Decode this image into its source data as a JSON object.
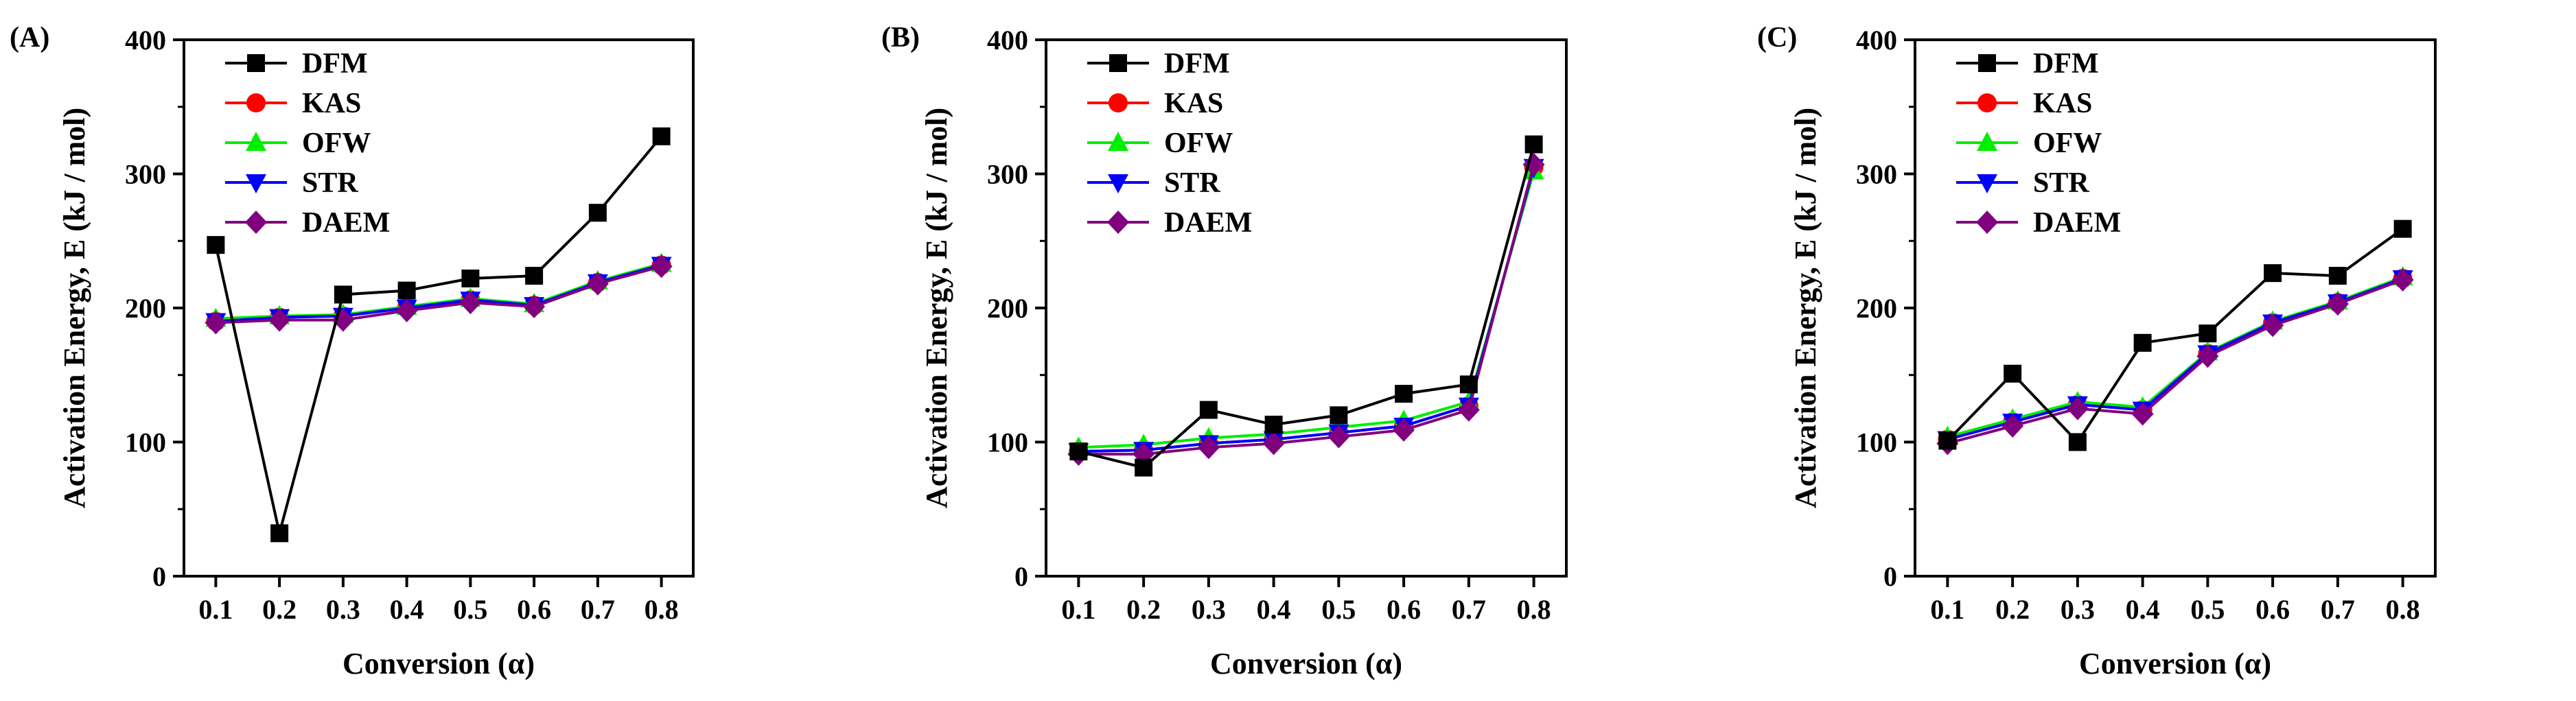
{
  "chart_data": [
    {
      "type": "line",
      "panel_label": "(A)",
      "xlabel": "Conversion (α)",
      "ylabel": "Activation Energy, E (kJ / mol)",
      "xlim": [
        0.05,
        0.85
      ],
      "ylim": [
        0,
        400
      ],
      "x": [
        0.1,
        0.2,
        0.3,
        0.4,
        0.5,
        0.6,
        0.7,
        0.8
      ],
      "x_tick_labels": [
        "0.1",
        "0.2",
        "0.3",
        "0.4",
        "0.5",
        "0.6",
        "0.7",
        "0.8"
      ],
      "y_ticks": [
        0,
        100,
        200,
        300,
        400
      ],
      "y_tick_labels": [
        "0",
        "100",
        "200",
        "300",
        "400"
      ],
      "legend_position": "top-left",
      "series": [
        {
          "name": "DFM",
          "color": "#000000",
          "marker": "square",
          "values": [
            247,
            32,
            210,
            213,
            222,
            224,
            271,
            328
          ]
        },
        {
          "name": "KAS",
          "color": "#ff0000",
          "marker": "circle",
          "values": [
            190,
            193,
            194,
            200,
            206,
            202,
            219,
            232
          ]
        },
        {
          "name": "OFW",
          "color": "#00ee00",
          "marker": "triangle-up",
          "values": [
            192,
            194,
            195,
            201,
            207,
            203,
            220,
            233
          ]
        },
        {
          "name": "STR",
          "color": "#0000ff",
          "marker": "triangle-down",
          "values": [
            190,
            193,
            194,
            200,
            206,
            202,
            219,
            232
          ]
        },
        {
          "name": "DAEM",
          "color": "#800080",
          "marker": "diamond",
          "values": [
            189,
            191,
            191,
            198,
            204,
            201,
            218,
            231
          ]
        }
      ]
    },
    {
      "type": "line",
      "panel_label": "(B)",
      "xlabel": "Conversion (α)",
      "ylabel": "Activation Energy, E (kJ / mol)",
      "xlim": [
        0.05,
        0.85
      ],
      "ylim": [
        0,
        400
      ],
      "x": [
        0.1,
        0.2,
        0.3,
        0.4,
        0.5,
        0.6,
        0.7,
        0.8
      ],
      "x_tick_labels": [
        "0.1",
        "0.2",
        "0.3",
        "0.4",
        "0.5",
        "0.6",
        "0.7",
        "0.8"
      ],
      "y_ticks": [
        0,
        100,
        200,
        300,
        400
      ],
      "y_tick_labels": [
        "0",
        "100",
        "200",
        "300",
        "400"
      ],
      "legend_position": "top-left",
      "series": [
        {
          "name": "DFM",
          "color": "#000000",
          "marker": "square",
          "values": [
            93,
            81,
            124,
            113,
            120,
            136,
            143,
            322
          ]
        },
        {
          "name": "KAS",
          "color": "#ff0000",
          "marker": "circle",
          "values": [
            93,
            94,
            99,
            102,
            107,
            112,
            127,
            305
          ]
        },
        {
          "name": "OFW",
          "color": "#00ee00",
          "marker": "triangle-up",
          "values": [
            96,
            98,
            103,
            106,
            111,
            116,
            130,
            302
          ]
        },
        {
          "name": "STR",
          "color": "#0000ff",
          "marker": "triangle-down",
          "values": [
            93,
            94,
            99,
            102,
            107,
            112,
            127,
            305
          ]
        },
        {
          "name": "DAEM",
          "color": "#800080",
          "marker": "diamond",
          "values": [
            91,
            91,
            96,
            99,
            104,
            109,
            124,
            307
          ]
        }
      ]
    },
    {
      "type": "line",
      "panel_label": "(C)",
      "xlabel": "Conversion (α)",
      "ylabel": "Activation Energy, E (kJ / mol)",
      "xlim": [
        0.05,
        0.85
      ],
      "ylim": [
        0,
        400
      ],
      "x": [
        0.1,
        0.2,
        0.3,
        0.4,
        0.5,
        0.6,
        0.7,
        0.8
      ],
      "x_tick_labels": [
        "0.1",
        "0.2",
        "0.3",
        "0.4",
        "0.5",
        "0.6",
        "0.7",
        "0.8"
      ],
      "y_ticks": [
        0,
        100,
        200,
        300,
        400
      ],
      "y_tick_labels": [
        "0",
        "100",
        "200",
        "300",
        "400"
      ],
      "legend_position": "top-left",
      "series": [
        {
          "name": "DFM",
          "color": "#000000",
          "marker": "square",
          "values": [
            101,
            151,
            100,
            174,
            181,
            226,
            224,
            259
          ]
        },
        {
          "name": "KAS",
          "color": "#ff0000",
          "marker": "circle",
          "values": [
            102,
            115,
            128,
            124,
            166,
            189,
            204,
            222
          ]
        },
        {
          "name": "OFW",
          "color": "#00ee00",
          "marker": "triangle-up",
          "values": [
            104,
            117,
            130,
            126,
            167,
            190,
            205,
            223
          ]
        },
        {
          "name": "STR",
          "color": "#0000ff",
          "marker": "triangle-down",
          "values": [
            102,
            115,
            128,
            124,
            166,
            189,
            204,
            222
          ]
        },
        {
          "name": "DAEM",
          "color": "#800080",
          "marker": "diamond",
          "values": [
            99,
            112,
            125,
            121,
            164,
            187,
            203,
            221
          ]
        }
      ]
    }
  ]
}
